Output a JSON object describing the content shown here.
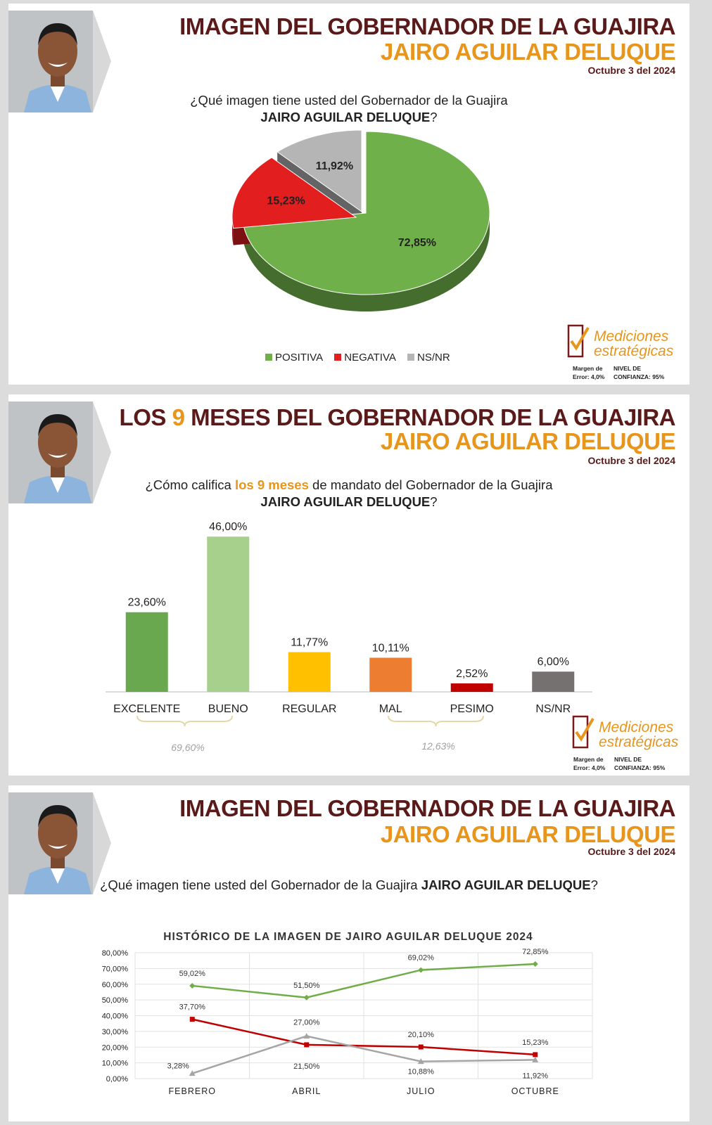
{
  "panel1": {
    "title_line1": "IMAGEN DEL GOBERNADOR DE LA GUAJIRA",
    "title_line2": "JAIRO AGUILAR DELUQUE",
    "date": "Octubre 3 del 2024",
    "question_line1": "¿Qué imagen tiene usted del Gobernador de la Guajira",
    "question_name": "JAIRO AGUILAR DELUQUE",
    "question_end": "?"
  },
  "panel2": {
    "title_a": "LOS ",
    "title_num": "9",
    "title_b": " MESES DEL GOBERNADOR DE LA GUAJIRA",
    "title_line2": "JAIRO AGUILAR DELUQUE",
    "date": "Octubre 3 del 2024",
    "question_a": "¿Cómo califica ",
    "question_hl": "los 9 meses",
    "question_b": " de mandato del Gobernador de la Guajira",
    "question_name": "JAIRO AGUILAR DELUQUE",
    "question_end": "?",
    "group_labels": [
      "69,60%",
      "12,63%"
    ]
  },
  "panel3": {
    "title_line1": "IMAGEN DEL GOBERNADOR DE LA GUAJIRA",
    "title_line2": "JAIRO AGUILAR DELUQUE",
    "date": "Octubre 3 del 2024",
    "question_a": "¿Qué imagen tiene usted del Gobernador de la Guajira ",
    "question_name": "JAIRO AGUILAR DELUQUE",
    "question_end": "?"
  },
  "logo": {
    "line1": "Mediciones",
    "line2": "estratégicas",
    "margin_label": "Margen de",
    "margin_value": "Error: 4,0%",
    "conf_label": "NIVEL DE",
    "conf_value": "CONFIANZA: 95%"
  },
  "colors": {
    "positiva": "#6fb04a",
    "negativa": "#e31e1e",
    "nsnr": "#b5b5b5",
    "excelente": "#6aa84f",
    "bueno": "#a8d08d",
    "regular": "#ffc000",
    "mal": "#ed7d31",
    "pesimo": "#c00000",
    "nsnr_bar": "#767171",
    "line_pos": "#70ad47",
    "line_neg": "#c00000",
    "line_ns": "#a5a5a5",
    "title_dark": "#5a1a1a",
    "title_orange": "#e8951c"
  },
  "chart_data": [
    {
      "type": "pie",
      "labels": [
        "POSITIVA",
        "NEGATIVA",
        "NS/NR"
      ],
      "values": [
        72.85,
        15.23,
        11.92
      ],
      "value_labels": [
        "72,85%",
        "15,23%",
        "11,92%"
      ],
      "legend_position": "bottom"
    },
    {
      "type": "bar",
      "categories": [
        "EXCELENTE",
        "BUENO",
        "REGULAR",
        "MAL",
        "PESIMO",
        "NS/NR"
      ],
      "values": [
        23.6,
        46.0,
        11.77,
        10.11,
        2.52,
        6.0
      ],
      "value_labels": [
        "23,60%",
        "46,00%",
        "11,77%",
        "10,11%",
        "2,52%",
        "6,00%"
      ],
      "ylim": [
        0,
        50
      ]
    },
    {
      "type": "line",
      "title": "HISTÓRICO DE LA IMAGEN DE JAIRO AGUILAR DELUQUE 2024",
      "categories": [
        "FEBRERO",
        "ABRIL",
        "JULIO",
        "OCTUBRE"
      ],
      "series": [
        {
          "values": [
            59.02,
            51.5,
            69.02,
            72.85
          ],
          "labels": [
            "59,02%",
            "51,50%",
            "69,02%",
            "72,85%"
          ]
        },
        {
          "values": [
            37.7,
            21.5,
            20.1,
            15.23
          ],
          "labels": [
            "37,70%",
            "21,50%",
            "20,10%",
            "15,23%"
          ]
        },
        {
          "values": [
            3.28,
            27.0,
            10.88,
            11.92
          ],
          "labels": [
            "3,28%",
            "27,00%",
            "10,88%",
            "11,92%"
          ]
        }
      ],
      "ylim": [
        0,
        80
      ],
      "yticks": [
        "0,00%",
        "10,00%",
        "20,00%",
        "30,00%",
        "40,00%",
        "50,00%",
        "60,00%",
        "70,00%",
        "80,00%"
      ],
      "grid": true
    }
  ]
}
